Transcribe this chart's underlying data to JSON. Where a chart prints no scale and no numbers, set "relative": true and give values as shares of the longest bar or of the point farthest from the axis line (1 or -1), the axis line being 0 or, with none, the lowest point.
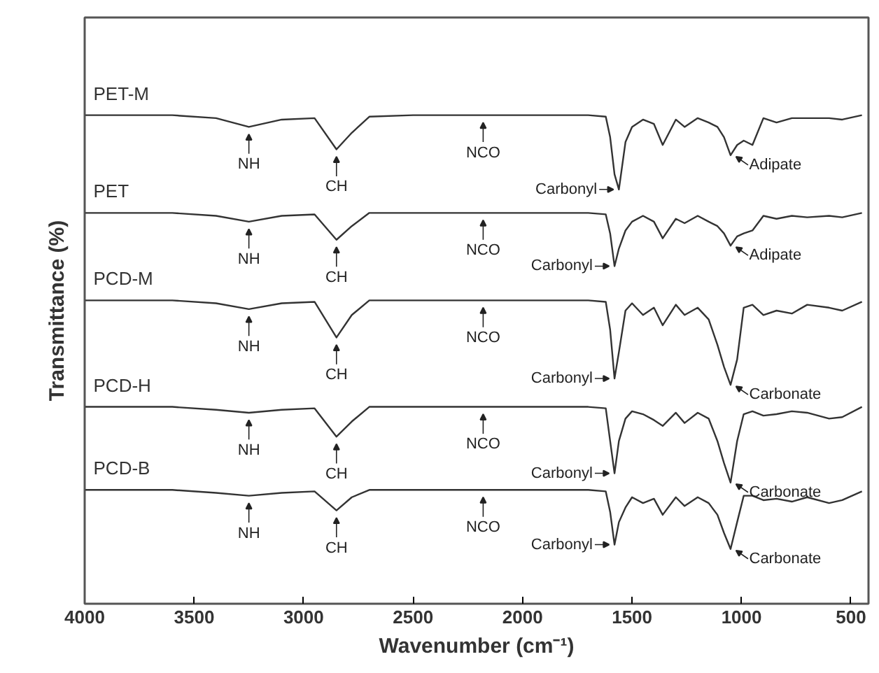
{
  "chart_data": {
    "type": "line",
    "relative": true,
    "xlabel": "Wavenumber (cm⁻¹)",
    "ylabel": "Transmittance (%)",
    "xlim": [
      4000,
      420
    ],
    "xticks": [
      4000,
      3500,
      3000,
      2500,
      2000,
      1500,
      1000,
      500
    ],
    "grid": false,
    "line_style": "solid",
    "marker": "none",
    "x": [
      4000,
      3800,
      3600,
      3400,
      3250,
      3100,
      2950,
      2850,
      2780,
      2700,
      2500,
      2000,
      1700,
      1620,
      1600,
      1580,
      1560,
      1530,
      1500,
      1450,
      1400,
      1360,
      1300,
      1260,
      1200,
      1150,
      1110,
      1080,
      1050,
      1020,
      990,
      950,
      900,
      840,
      770,
      700,
      600,
      540,
      450
    ],
    "series": [
      {
        "name": "PET-M",
        "color": "#333333",
        "values": [
          1,
          1,
          1,
          0.994,
          0.976,
          0.991,
          0.994,
          0.93,
          0.964,
          0.997,
          1,
          1,
          1,
          0.997,
          0.955,
          0.879,
          0.848,
          0.945,
          0.976,
          0.991,
          0.982,
          0.939,
          0.991,
          0.976,
          0.994,
          0.985,
          0.976,
          0.955,
          0.918,
          0.939,
          0.948,
          0.939,
          0.994,
          0.985,
          0.994,
          0.994,
          0.994,
          0.991,
          1
        ]
      },
      {
        "name": "PET",
        "color": "#333333",
        "values": [
          0.8,
          0.8,
          0.8,
          0.794,
          0.782,
          0.794,
          0.797,
          0.745,
          0.773,
          0.8,
          0.8,
          0.8,
          0.8,
          0.797,
          0.758,
          0.691,
          0.727,
          0.764,
          0.782,
          0.794,
          0.782,
          0.748,
          0.788,
          0.779,
          0.794,
          0.782,
          0.773,
          0.758,
          0.733,
          0.752,
          0.758,
          0.764,
          0.794,
          0.788,
          0.794,
          0.791,
          0.794,
          0.791,
          0.8
        ]
      },
      {
        "name": "PCD-M",
        "color": "#333333",
        "values": [
          0.621,
          0.621,
          0.621,
          0.615,
          0.603,
          0.615,
          0.618,
          0.545,
          0.591,
          0.621,
          0.621,
          0.621,
          0.621,
          0.618,
          0.561,
          0.461,
          0.515,
          0.6,
          0.615,
          0.591,
          0.606,
          0.57,
          0.612,
          0.591,
          0.606,
          0.582,
          0.53,
          0.485,
          0.448,
          0.5,
          0.606,
          0.612,
          0.591,
          0.6,
          0.594,
          0.612,
          0.606,
          0.6,
          0.618
        ]
      },
      {
        "name": "PCD-H",
        "color": "#333333",
        "values": [
          0.403,
          0.403,
          0.403,
          0.397,
          0.391,
          0.397,
          0.4,
          0.342,
          0.373,
          0.403,
          0.403,
          0.403,
          0.403,
          0.4,
          0.333,
          0.267,
          0.333,
          0.379,
          0.394,
          0.388,
          0.376,
          0.364,
          0.391,
          0.37,
          0.391,
          0.379,
          0.333,
          0.288,
          0.248,
          0.333,
          0.388,
          0.394,
          0.385,
          0.388,
          0.394,
          0.391,
          0.379,
          0.382,
          0.403
        ]
      },
      {
        "name": "PCD-B",
        "color": "#333333",
        "values": [
          0.233,
          0.233,
          0.233,
          0.227,
          0.221,
          0.227,
          0.23,
          0.191,
          0.218,
          0.233,
          0.233,
          0.233,
          0.233,
          0.23,
          0.188,
          0.121,
          0.167,
          0.197,
          0.218,
          0.206,
          0.215,
          0.182,
          0.218,
          0.2,
          0.218,
          0.206,
          0.182,
          0.145,
          0.112,
          0.167,
          0.221,
          0.221,
          0.212,
          0.215,
          0.209,
          0.218,
          0.206,
          0.212,
          0.23
        ]
      }
    ],
    "annotations": [
      {
        "text": "NH",
        "x": 3250,
        "y": 0.976
      },
      {
        "text": "CH",
        "x": 2850,
        "y": 0.93
      },
      {
        "text": "NCO",
        "x": 2180,
        "y": 1.0
      },
      {
        "text": "Carbonyl",
        "x": 1560,
        "y": 0.848
      },
      {
        "text": "Adipate",
        "x": 1050,
        "y": 0.918
      },
      {
        "text": "NH",
        "x": 3250,
        "y": 0.782
      },
      {
        "text": "CH",
        "x": 2850,
        "y": 0.745
      },
      {
        "text": "NCO",
        "x": 2180,
        "y": 0.8
      },
      {
        "text": "Carbonyl",
        "x": 1580,
        "y": 0.691
      },
      {
        "text": "Adipate",
        "x": 1050,
        "y": 0.733
      },
      {
        "text": "NH",
        "x": 3250,
        "y": 0.603
      },
      {
        "text": "CH",
        "x": 2850,
        "y": 0.545
      },
      {
        "text": "NCO",
        "x": 2180,
        "y": 0.621
      },
      {
        "text": "Carbonyl",
        "x": 1580,
        "y": 0.461
      },
      {
        "text": "Carbonate",
        "x": 1050,
        "y": 0.448
      },
      {
        "text": "NH",
        "x": 3250,
        "y": 0.391
      },
      {
        "text": "CH",
        "x": 2850,
        "y": 0.342
      },
      {
        "text": "NCO",
        "x": 2180,
        "y": 0.403
      },
      {
        "text": "Carbonyl",
        "x": 1580,
        "y": 0.267
      },
      {
        "text": "Carbonate",
        "x": 1050,
        "y": 0.248
      },
      {
        "text": "NH",
        "x": 3250,
        "y": 0.221
      },
      {
        "text": "CH",
        "x": 2850,
        "y": 0.191
      },
      {
        "text": "NCO",
        "x": 2180,
        "y": 0.233
      },
      {
        "text": "Carbonyl",
        "x": 1580,
        "y": 0.121
      },
      {
        "text": "Carbonate",
        "x": 1050,
        "y": 0.112
      }
    ]
  }
}
